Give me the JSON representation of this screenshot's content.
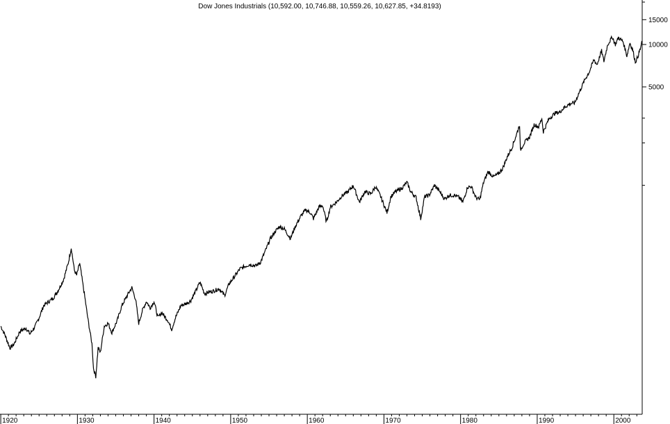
{
  "chart_data": {
    "type": "line",
    "title": "Dow Jones Industrials (10,592.00, 10,746.88, 10,559.26, 10,627.85, +34.8193)",
    "xlabel": "",
    "ylabel": "",
    "y_scale": "log",
    "grid": false,
    "x_ticks": [
      "1920",
      "1930",
      "1940",
      "1950",
      "1960",
      "1970",
      "1980",
      "1990",
      "2000"
    ],
    "y_ticks": [
      15000,
      10000,
      5000
    ],
    "y_tick_labels": [
      "15000",
      "10000",
      "5000"
    ],
    "xlim": [
      1919.9,
      2003.7
    ],
    "ylim": [
      35,
      20000
    ],
    "line_color": "#000000",
    "series": [
      {
        "values": [
          [
            1920.0,
            100
          ],
          [
            1920.5,
            88
          ],
          [
            1921.2,
            70
          ],
          [
            1921.7,
            74
          ],
          [
            1922.5,
            92
          ],
          [
            1923.3,
            97
          ],
          [
            1923.8,
            88
          ],
          [
            1924.5,
            100
          ],
          [
            1925.0,
            115
          ],
          [
            1925.6,
            140
          ],
          [
            1926.3,
            150
          ],
          [
            1926.8,
            157
          ],
          [
            1927.5,
            180
          ],
          [
            1928.2,
            215
          ],
          [
            1928.8,
            280
          ],
          [
            1929.2,
            360
          ],
          [
            1929.6,
            250
          ],
          [
            1929.9,
            230
          ],
          [
            1930.3,
            280
          ],
          [
            1930.9,
            170
          ],
          [
            1931.4,
            110
          ],
          [
            1931.9,
            75
          ],
          [
            1932.1,
            50
          ],
          [
            1932.4,
            44
          ],
          [
            1932.7,
            70
          ],
          [
            1933.0,
            65
          ],
          [
            1933.5,
            100
          ],
          [
            1934.0,
            105
          ],
          [
            1934.5,
            90
          ],
          [
            1935.2,
            110
          ],
          [
            1935.8,
            140
          ],
          [
            1936.5,
            165
          ],
          [
            1937.1,
            188
          ],
          [
            1937.6,
            155
          ],
          [
            1938.0,
            105
          ],
          [
            1938.5,
            130
          ],
          [
            1939.0,
            150
          ],
          [
            1939.5,
            135
          ],
          [
            1940.0,
            150
          ],
          [
            1940.5,
            115
          ],
          [
            1941.0,
            125
          ],
          [
            1941.8,
            110
          ],
          [
            1942.3,
            95
          ],
          [
            1942.8,
            115
          ],
          [
            1943.5,
            140
          ],
          [
            1944.2,
            145
          ],
          [
            1944.8,
            152
          ],
          [
            1945.5,
            180
          ],
          [
            1946.0,
            205
          ],
          [
            1946.6,
            170
          ],
          [
            1947.2,
            175
          ],
          [
            1947.8,
            178
          ],
          [
            1948.5,
            185
          ],
          [
            1949.2,
            165
          ],
          [
            1949.8,
            200
          ],
          [
            1950.5,
            225
          ],
          [
            1951.2,
            255
          ],
          [
            1951.8,
            265
          ],
          [
            1952.5,
            275
          ],
          [
            1953.3,
            268
          ],
          [
            1953.9,
            285
          ],
          [
            1954.5,
            340
          ],
          [
            1955.2,
            420
          ],
          [
            1955.8,
            470
          ],
          [
            1956.4,
            510
          ],
          [
            1957.0,
            490
          ],
          [
            1957.8,
            420
          ],
          [
            1958.5,
            520
          ],
          [
            1959.2,
            610
          ],
          [
            1959.8,
            670
          ],
          [
            1960.4,
            640
          ],
          [
            1960.8,
            580
          ],
          [
            1961.5,
            700
          ],
          [
            1962.0,
            720
          ],
          [
            1962.5,
            550
          ],
          [
            1963.0,
            700
          ],
          [
            1963.8,
            760
          ],
          [
            1964.5,
            840
          ],
          [
            1965.3,
            900
          ],
          [
            1966.0,
            995
          ],
          [
            1966.8,
            760
          ],
          [
            1967.5,
            900
          ],
          [
            1968.3,
            870
          ],
          [
            1968.9,
            980
          ],
          [
            1969.5,
            850
          ],
          [
            1970.4,
            640
          ],
          [
            1970.9,
            830
          ],
          [
            1971.5,
            900
          ],
          [
            1972.3,
            950
          ],
          [
            1973.0,
            1050
          ],
          [
            1973.5,
            900
          ],
          [
            1974.2,
            820
          ],
          [
            1974.8,
            580
          ],
          [
            1975.3,
            830
          ],
          [
            1975.9,
            850
          ],
          [
            1976.6,
            1000
          ],
          [
            1977.3,
            900
          ],
          [
            1977.9,
            800
          ],
          [
            1978.5,
            850
          ],
          [
            1979.2,
            850
          ],
          [
            1979.8,
            820
          ],
          [
            1980.3,
            760
          ],
          [
            1980.9,
            970
          ],
          [
            1981.4,
            980
          ],
          [
            1982.0,
            820
          ],
          [
            1982.5,
            790
          ],
          [
            1983.0,
            1050
          ],
          [
            1983.6,
            1250
          ],
          [
            1984.3,
            1150
          ],
          [
            1984.9,
            1200
          ],
          [
            1985.5,
            1320
          ],
          [
            1986.1,
            1600
          ],
          [
            1986.7,
            1850
          ],
          [
            1987.3,
            2300
          ],
          [
            1987.7,
            2700
          ],
          [
            1987.8,
            1780
          ],
          [
            1988.3,
            2000
          ],
          [
            1989.0,
            2200
          ],
          [
            1989.6,
            2700
          ],
          [
            1990.2,
            2600
          ],
          [
            1990.6,
            2999
          ],
          [
            1990.8,
            2400
          ],
          [
            1991.5,
            2950
          ],
          [
            1992.3,
            3250
          ],
          [
            1992.9,
            3300
          ],
          [
            1993.6,
            3600
          ],
          [
            1994.3,
            3800
          ],
          [
            1994.9,
            3850
          ],
          [
            1995.5,
            4600
          ],
          [
            1996.2,
            5600
          ],
          [
            1996.8,
            6400
          ],
          [
            1997.4,
            7800
          ],
          [
            1997.8,
            7200
          ],
          [
            1998.4,
            9000
          ],
          [
            1998.7,
            7600
          ],
          [
            1999.2,
            10000
          ],
          [
            1999.8,
            11300
          ],
          [
            2000.2,
            10000
          ],
          [
            2000.6,
            11200
          ],
          [
            2001.2,
            10500
          ],
          [
            2001.7,
            8300
          ],
          [
            2002.1,
            10300
          ],
          [
            2002.5,
            9000
          ],
          [
            2002.8,
            7500
          ],
          [
            2003.1,
            8100
          ],
          [
            2003.5,
            9500
          ],
          [
            2003.7,
            10600
          ]
        ]
      }
    ]
  }
}
